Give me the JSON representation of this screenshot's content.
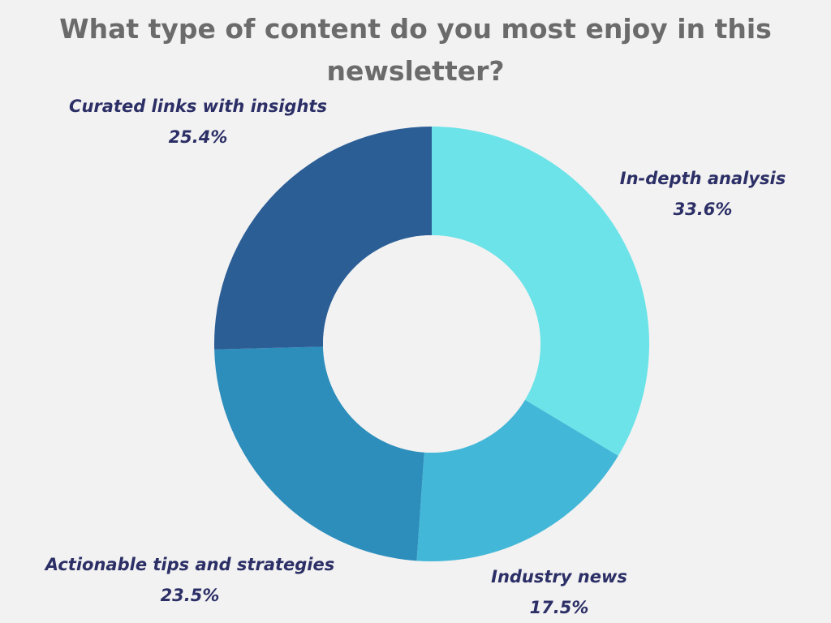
{
  "chart_data": {
    "type": "pie",
    "title": "What type of content do you most enjoy in this newsletter?",
    "donut": true,
    "unit": "%",
    "slices": [
      {
        "label": "In-depth analysis",
        "value": 33.6,
        "display": "33.6%",
        "color": "#6be3e8"
      },
      {
        "label": "Industry news",
        "value": 17.5,
        "display": "17.5%",
        "color": "#43b7d8"
      },
      {
        "label": "Actionable tips and strategies",
        "value": 23.5,
        "display": "23.5%",
        "color": "#2d8ebc"
      },
      {
        "label": "Curated links with insights",
        "value": 25.4,
        "display": "25.4%",
        "color": "#2c5e96"
      }
    ]
  }
}
